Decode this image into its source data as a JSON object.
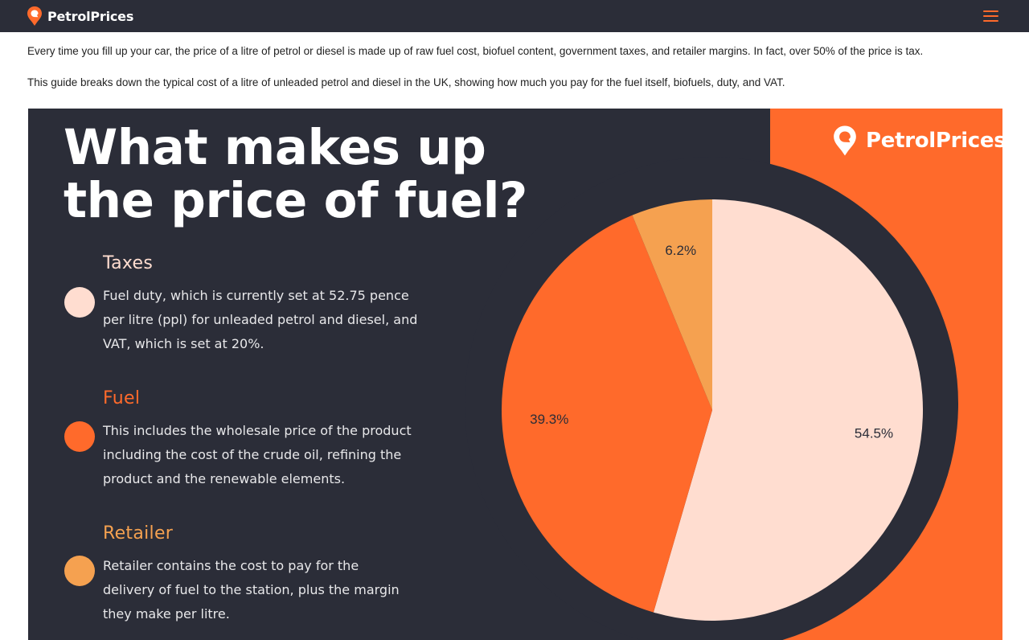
{
  "header": {
    "brand": "PetrolPrices",
    "menu_icon": "hamburger-menu-icon"
  },
  "intro": {
    "line1": "Every time you fill up your car, the price of a litre of petrol or diesel is made up of raw fuel cost, biofuel content, government taxes, and retailer margins. In fact, over 50% of the price is tax.",
    "line2": "This guide breaks down the typical cost of a litre of unleaded petrol and diesel in the UK, showing how much you pay for the fuel itself, biofuels, duty, and VAT."
  },
  "infographic": {
    "brand": "PetrolPrices",
    "headline_line1": "What makes up",
    "headline_line2": "the price of fuel?",
    "legend": [
      {
        "title": "Taxes",
        "color": "#ffddd0",
        "title_color": "#ffddd0",
        "desc_lines": [
          "Fuel duty, which is currently set at 52.75 pence",
          "per litre (ppl) for unleaded petrol and diesel, and",
          "VAT, which is set at 20%."
        ]
      },
      {
        "title": "Fuel",
        "color": "#ff6a2b",
        "title_color": "#ff6a2b",
        "desc_lines": [
          "This includes the wholesale price of the product",
          "including the cost of the crude oil, refining the",
          "product and the renewable elements."
        ]
      },
      {
        "title": "Retailer",
        "color": "#f5a150",
        "title_color": "#f5a150",
        "desc_lines": [
          "Retailer contains the cost to pay for the",
          "delivery of fuel to the station, plus the margin",
          "they make per litre."
        ]
      }
    ]
  },
  "chart_data": {
    "type": "pie",
    "slices": [
      {
        "label": "54.5%",
        "value": 54.5,
        "color": "#ffddd0"
      },
      {
        "label": "39.3%",
        "value": 39.3,
        "color": "#ff6a2b"
      },
      {
        "label": "6.2%",
        "value": 6.2,
        "color": "#f5a150"
      }
    ],
    "start": "12 o'clock",
    "direction": "clockwise"
  }
}
